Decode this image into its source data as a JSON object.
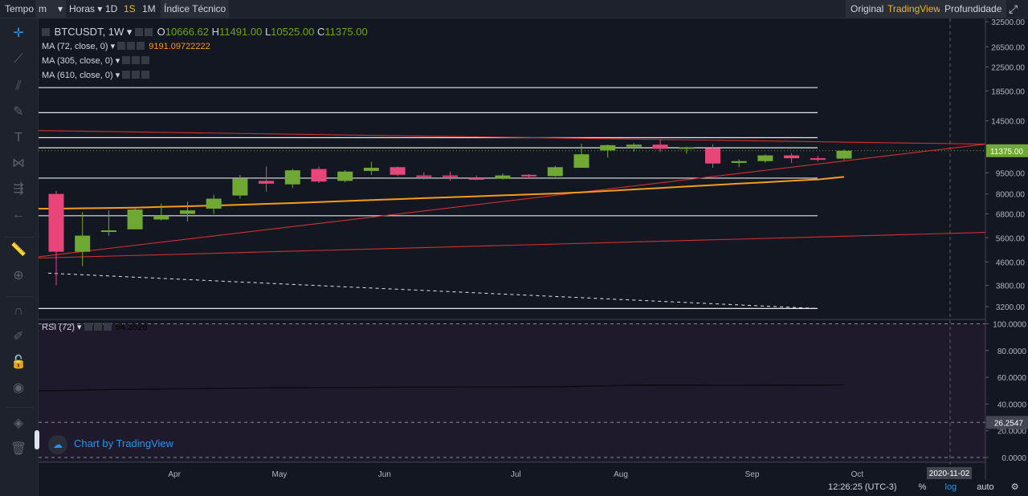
{
  "toolbar": {
    "tempo": "Tempo",
    "interval": "m",
    "horas": "Horas",
    "d1": "1D",
    "s1": "1S",
    "m1": "1M",
    "indice": "Índice Técnico",
    "original": "Original",
    "tradingview": "TradingView",
    "profundidade": "Profundidade"
  },
  "legend": {
    "symbol": "BTCUSDT, 1W",
    "o_label": "O",
    "o": "10666.62",
    "h_label": "H",
    "h": "11491.00",
    "l_label": "L",
    "l": "10525.00",
    "c_label": "C",
    "c": "11375.00",
    "ma1": "MA (72, close, 0)",
    "ma1_value": "9191.09722222",
    "ma2": "MA (305, close, 0)",
    "ma3": "MA (610, close, 0)",
    "rsi": "RSI (72)",
    "rsi_value": "54.3526"
  },
  "watermark": "Chart by TradingView",
  "bottom": {
    "time": "12:26:25 (UTC-3)",
    "percent": "%",
    "log": "log",
    "auto": "auto"
  },
  "colors": {
    "up": "#6fa832",
    "down": "#e8457a",
    "ma": "#f59c1a",
    "trend": "#d32f2f",
    "accent": "#f0b90b"
  },
  "chart_data": {
    "type": "candlestick",
    "scale": "log",
    "price_axis_ticks": [
      32500,
      26500,
      22500,
      18500,
      14500,
      11375,
      9500,
      8000,
      6800,
      5600,
      4600,
      3800,
      3200
    ],
    "price_tick_labels": [
      "32500.00",
      "26500.00",
      "22500.00",
      "18500.00",
      "14500.00",
      "11375.00",
      "9500.00",
      "8000.00",
      "6800.00",
      "5600.00",
      "4600.00",
      "3800.00",
      "3200.00"
    ],
    "last_price": 11375,
    "last_price_label": "11375.00",
    "x_labels": [
      "Apr",
      "May",
      "Jun",
      "Jul",
      "Aug",
      "Sep",
      "Oct"
    ],
    "x_label_weeks": [
      4.5,
      8.5,
      12.5,
      17.5,
      21.5,
      26.5,
      30.5
    ],
    "crosshair_label": "2020-11-02",
    "candles": [
      {
        "o": 8000,
        "h": 8200,
        "l": 3800,
        "c": 5000
      },
      {
        "o": 5000,
        "h": 6900,
        "l": 4450,
        "c": 5700
      },
      {
        "o": 5900,
        "h": 7000,
        "l": 5700,
        "c": 5950
      },
      {
        "o": 6000,
        "h": 7100,
        "l": 6000,
        "c": 7050
      },
      {
        "o": 6500,
        "h": 7400,
        "l": 6450,
        "c": 6700
      },
      {
        "o": 6800,
        "h": 7500,
        "l": 6400,
        "c": 7000
      },
      {
        "o": 7100,
        "h": 7950,
        "l": 6800,
        "c": 7700
      },
      {
        "o": 7900,
        "h": 9350,
        "l": 7700,
        "c": 9050
      },
      {
        "o": 8900,
        "h": 10000,
        "l": 8150,
        "c": 8700
      },
      {
        "o": 8650,
        "h": 9800,
        "l": 8400,
        "c": 9700
      },
      {
        "o": 9800,
        "h": 10000,
        "l": 8750,
        "c": 8850
      },
      {
        "o": 8900,
        "h": 9700,
        "l": 8800,
        "c": 9600
      },
      {
        "o": 9650,
        "h": 10400,
        "l": 9350,
        "c": 9900
      },
      {
        "o": 9950,
        "h": 10000,
        "l": 9250,
        "c": 9350
      },
      {
        "o": 9300,
        "h": 9550,
        "l": 9000,
        "c": 9250
      },
      {
        "o": 9300,
        "h": 9600,
        "l": 8900,
        "c": 9200
      },
      {
        "o": 9100,
        "h": 9300,
        "l": 8950,
        "c": 9050
      },
      {
        "o": 9050,
        "h": 9450,
        "l": 9000,
        "c": 9300
      },
      {
        "o": 9350,
        "h": 9400,
        "l": 9100,
        "c": 9250
      },
      {
        "o": 9250,
        "h": 10050,
        "l": 9200,
        "c": 9950
      },
      {
        "o": 9900,
        "h": 12050,
        "l": 9900,
        "c": 11050
      },
      {
        "o": 11400,
        "h": 11950,
        "l": 10750,
        "c": 11900
      },
      {
        "o": 11750,
        "h": 12100,
        "l": 11300,
        "c": 11950
      },
      {
        "o": 11950,
        "h": 12450,
        "l": 11250,
        "c": 11550
      },
      {
        "o": 11600,
        "h": 11750,
        "l": 11100,
        "c": 11700
      },
      {
        "o": 11600,
        "h": 12000,
        "l": 9900,
        "c": 10250
      },
      {
        "o": 10300,
        "h": 10600,
        "l": 9950,
        "c": 10450
      },
      {
        "o": 10450,
        "h": 11050,
        "l": 10300,
        "c": 10950
      },
      {
        "o": 10950,
        "h": 11150,
        "l": 10300,
        "c": 10700
      },
      {
        "o": 10700,
        "h": 10900,
        "l": 10400,
        "c": 10600
      },
      {
        "o": 10666.62,
        "h": 11491,
        "l": 10525,
        "c": 11375
      }
    ],
    "ma72": [
      7100,
      7120,
      7140,
      7160,
      7200,
      7240,
      7280,
      7330,
      7380,
      7430,
      7490,
      7550,
      7610,
      7670,
      7730,
      7790,
      7850,
      7910,
      7970,
      8030,
      8110,
      8200,
      8300,
      8400,
      8500,
      8600,
      8700,
      8800,
      8900,
      9000,
      9191.1
    ],
    "horizontal_levels": [
      19000,
      15500,
      12650,
      11650,
      9100,
      6700,
      3150
    ],
    "rsi": {
      "ticks": [
        100,
        80,
        60,
        40,
        20,
        0
      ],
      "tick_labels": [
        "100.0000",
        "80.0000",
        "60.0000",
        "40.0000",
        "20.0000",
        "0.0000"
      ],
      "upper_band": 100,
      "lower_band": 26.2547,
      "lower_band_label": "26.2547",
      "values": [
        50,
        50.4,
        50.8,
        51,
        51.3,
        51.5,
        51.7,
        51.9,
        52,
        52.2,
        52.3,
        52.4,
        52.5,
        52.6,
        52.6,
        52.6,
        52.7,
        52.7,
        52.8,
        52.9,
        53.2,
        53.6,
        54,
        54.1,
        54.1,
        53.9,
        53.9,
        54,
        54.1,
        54.2,
        54.35
      ]
    }
  }
}
